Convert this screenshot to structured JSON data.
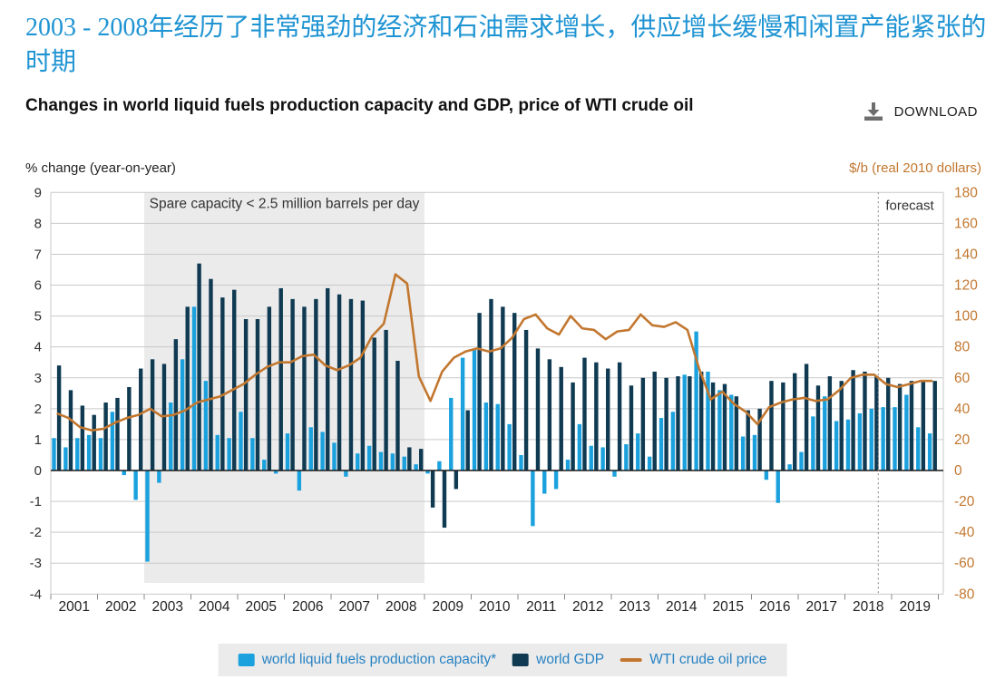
{
  "header": {
    "title_zh": "2003 - 2008年经历了非常强劲的经济和石油需求增长，供应增长缓慢和闲置产能紧张的时期",
    "chart_title_en": "Changes in world liquid fuels production capacity and GDP, price of WTI crude oil",
    "download_label": "DOWNLOAD"
  },
  "axis_captions": {
    "left": "% change (year-on-year)",
    "right": "$/b (real 2010 dollars)"
  },
  "annotations": {
    "spare_capacity": "Spare capacity < 2.5 million barrels per day",
    "forecast_label": "forecast"
  },
  "legend": {
    "items": [
      {
        "label": "world liquid fuels production capacity*",
        "swatch": "square",
        "color": "#1ba2de"
      },
      {
        "label": "world GDP",
        "swatch": "square",
        "color": "#0f3a52"
      },
      {
        "label": "WTI crude oil price",
        "swatch": "line",
        "color": "#c2772f"
      }
    ]
  },
  "colors": {
    "title_blue": "#1f94d3",
    "capacity_blue": "#1ba2de",
    "gdp_navy": "#0f3a52",
    "wti_orange": "#c2772f",
    "legend_text": "#2782c3",
    "legend_bg": "#ebebeb",
    "gridline": "#c9c9c9",
    "shading": "#ebebeb",
    "axis_text": "#333333",
    "zero_line": "#1a1a1a",
    "forecast_dash": "#999999",
    "download_icon": "#6d6d6d"
  },
  "chart_data": {
    "type": "bar",
    "subtype": "grouped-bars-plus-line",
    "frequency": "quarterly",
    "x_years": [
      2001,
      2002,
      2003,
      2004,
      2005,
      2006,
      2007,
      2008,
      2009,
      2010,
      2011,
      2012,
      2013,
      2014,
      2015,
      2016,
      2017,
      2018,
      2019
    ],
    "left_axis": {
      "label": "% change (year-on-year)",
      "min": -4,
      "max": 9,
      "ticks": [
        9,
        8,
        7,
        6,
        5,
        4,
        3,
        2,
        1,
        0,
        -1,
        -2,
        -3,
        -4
      ]
    },
    "right_axis": {
      "label": "$/b (real 2010 dollars)",
      "min": -80,
      "max": 180,
      "ticks": [
        180,
        160,
        140,
        120,
        100,
        80,
        60,
        40,
        20,
        0,
        -20,
        -40,
        -60,
        -80
      ]
    },
    "grid": true,
    "legend_position": "bottom",
    "shaded_region": {
      "from_year": 2003,
      "to_year": 2009,
      "label": "Spare capacity < 2.5 million barrels per day"
    },
    "forecast": {
      "starts_at": "2018 Q4",
      "label": "forecast"
    },
    "series": [
      {
        "name": "world liquid fuels production capacity*",
        "type": "bar",
        "axis": "left",
        "color": "#1ba2de",
        "values": [
          1.05,
          0.75,
          1.05,
          1.15,
          1.05,
          1.9,
          -0.15,
          -0.95,
          -2.95,
          -0.4,
          2.2,
          3.6,
          5.3,
          2.9,
          1.15,
          1.05,
          1.9,
          1.05,
          0.35,
          -0.1,
          1.2,
          -0.65,
          1.4,
          1.25,
          0.9,
          -0.2,
          0.55,
          0.8,
          0.6,
          0.55,
          0.45,
          0.2,
          -0.1,
          0.3,
          2.35,
          3.65,
          3.9,
          2.2,
          2.15,
          1.5,
          0.5,
          -1.8,
          -0.75,
          -0.6,
          0.35,
          1.5,
          0.8,
          0.75,
          -0.2,
          0.85,
          1.2,
          0.45,
          1.7,
          1.9,
          3.1,
          4.5,
          3.2,
          2.6,
          2.45,
          1.1,
          1.15,
          -0.3,
          -1.05,
          0.2,
          0.6,
          1.75,
          2.4,
          1.6,
          1.65,
          1.85,
          2.0,
          2.05,
          2.05,
          2.45,
          1.4,
          1.2
        ]
      },
      {
        "name": "world GDP",
        "type": "bar",
        "axis": "left",
        "color": "#0f3a52",
        "values": [
          3.4,
          2.6,
          2.1,
          1.8,
          2.2,
          2.35,
          2.7,
          3.3,
          3.6,
          3.45,
          4.25,
          5.3,
          6.7,
          6.2,
          5.6,
          5.85,
          4.9,
          4.9,
          5.3,
          5.9,
          5.55,
          5.3,
          5.55,
          5.9,
          5.7,
          5.55,
          5.5,
          4.3,
          4.55,
          3.55,
          0.75,
          0.7,
          -1.2,
          -1.85,
          -0.6,
          1.95,
          5.1,
          5.55,
          5.3,
          5.1,
          4.55,
          3.95,
          3.6,
          3.35,
          2.85,
          3.65,
          3.5,
          3.3,
          3.5,
          2.75,
          3.0,
          3.2,
          3.0,
          3.05,
          3.05,
          3.2,
          2.85,
          2.8,
          2.4,
          1.95,
          2.0,
          2.9,
          2.85,
          3.15,
          3.45,
          2.75,
          3.05,
          2.9,
          3.25,
          3.2,
          3.05,
          3.0,
          2.8,
          2.9,
          2.9,
          2.9
        ]
      },
      {
        "name": "WTI crude oil price",
        "type": "line",
        "axis": "right",
        "color": "#c2772f",
        "values": [
          37,
          34,
          28,
          26,
          27,
          31,
          34,
          36,
          40,
          35,
          36,
          39,
          44,
          46,
          48,
          52,
          56,
          62,
          67,
          70,
          70,
          74,
          75,
          68,
          65,
          68,
          73,
          87,
          95,
          127,
          121,
          61,
          45,
          64,
          73,
          77,
          79,
          77,
          79,
          86,
          98,
          101,
          92,
          88,
          100,
          92,
          91,
          85,
          90,
          91,
          101,
          94,
          93,
          96,
          91,
          66,
          46,
          51,
          43,
          38,
          30,
          41,
          44,
          46,
          47,
          45,
          46,
          52,
          60,
          62,
          62,
          56,
          54,
          56,
          58,
          58
        ]
      }
    ]
  }
}
